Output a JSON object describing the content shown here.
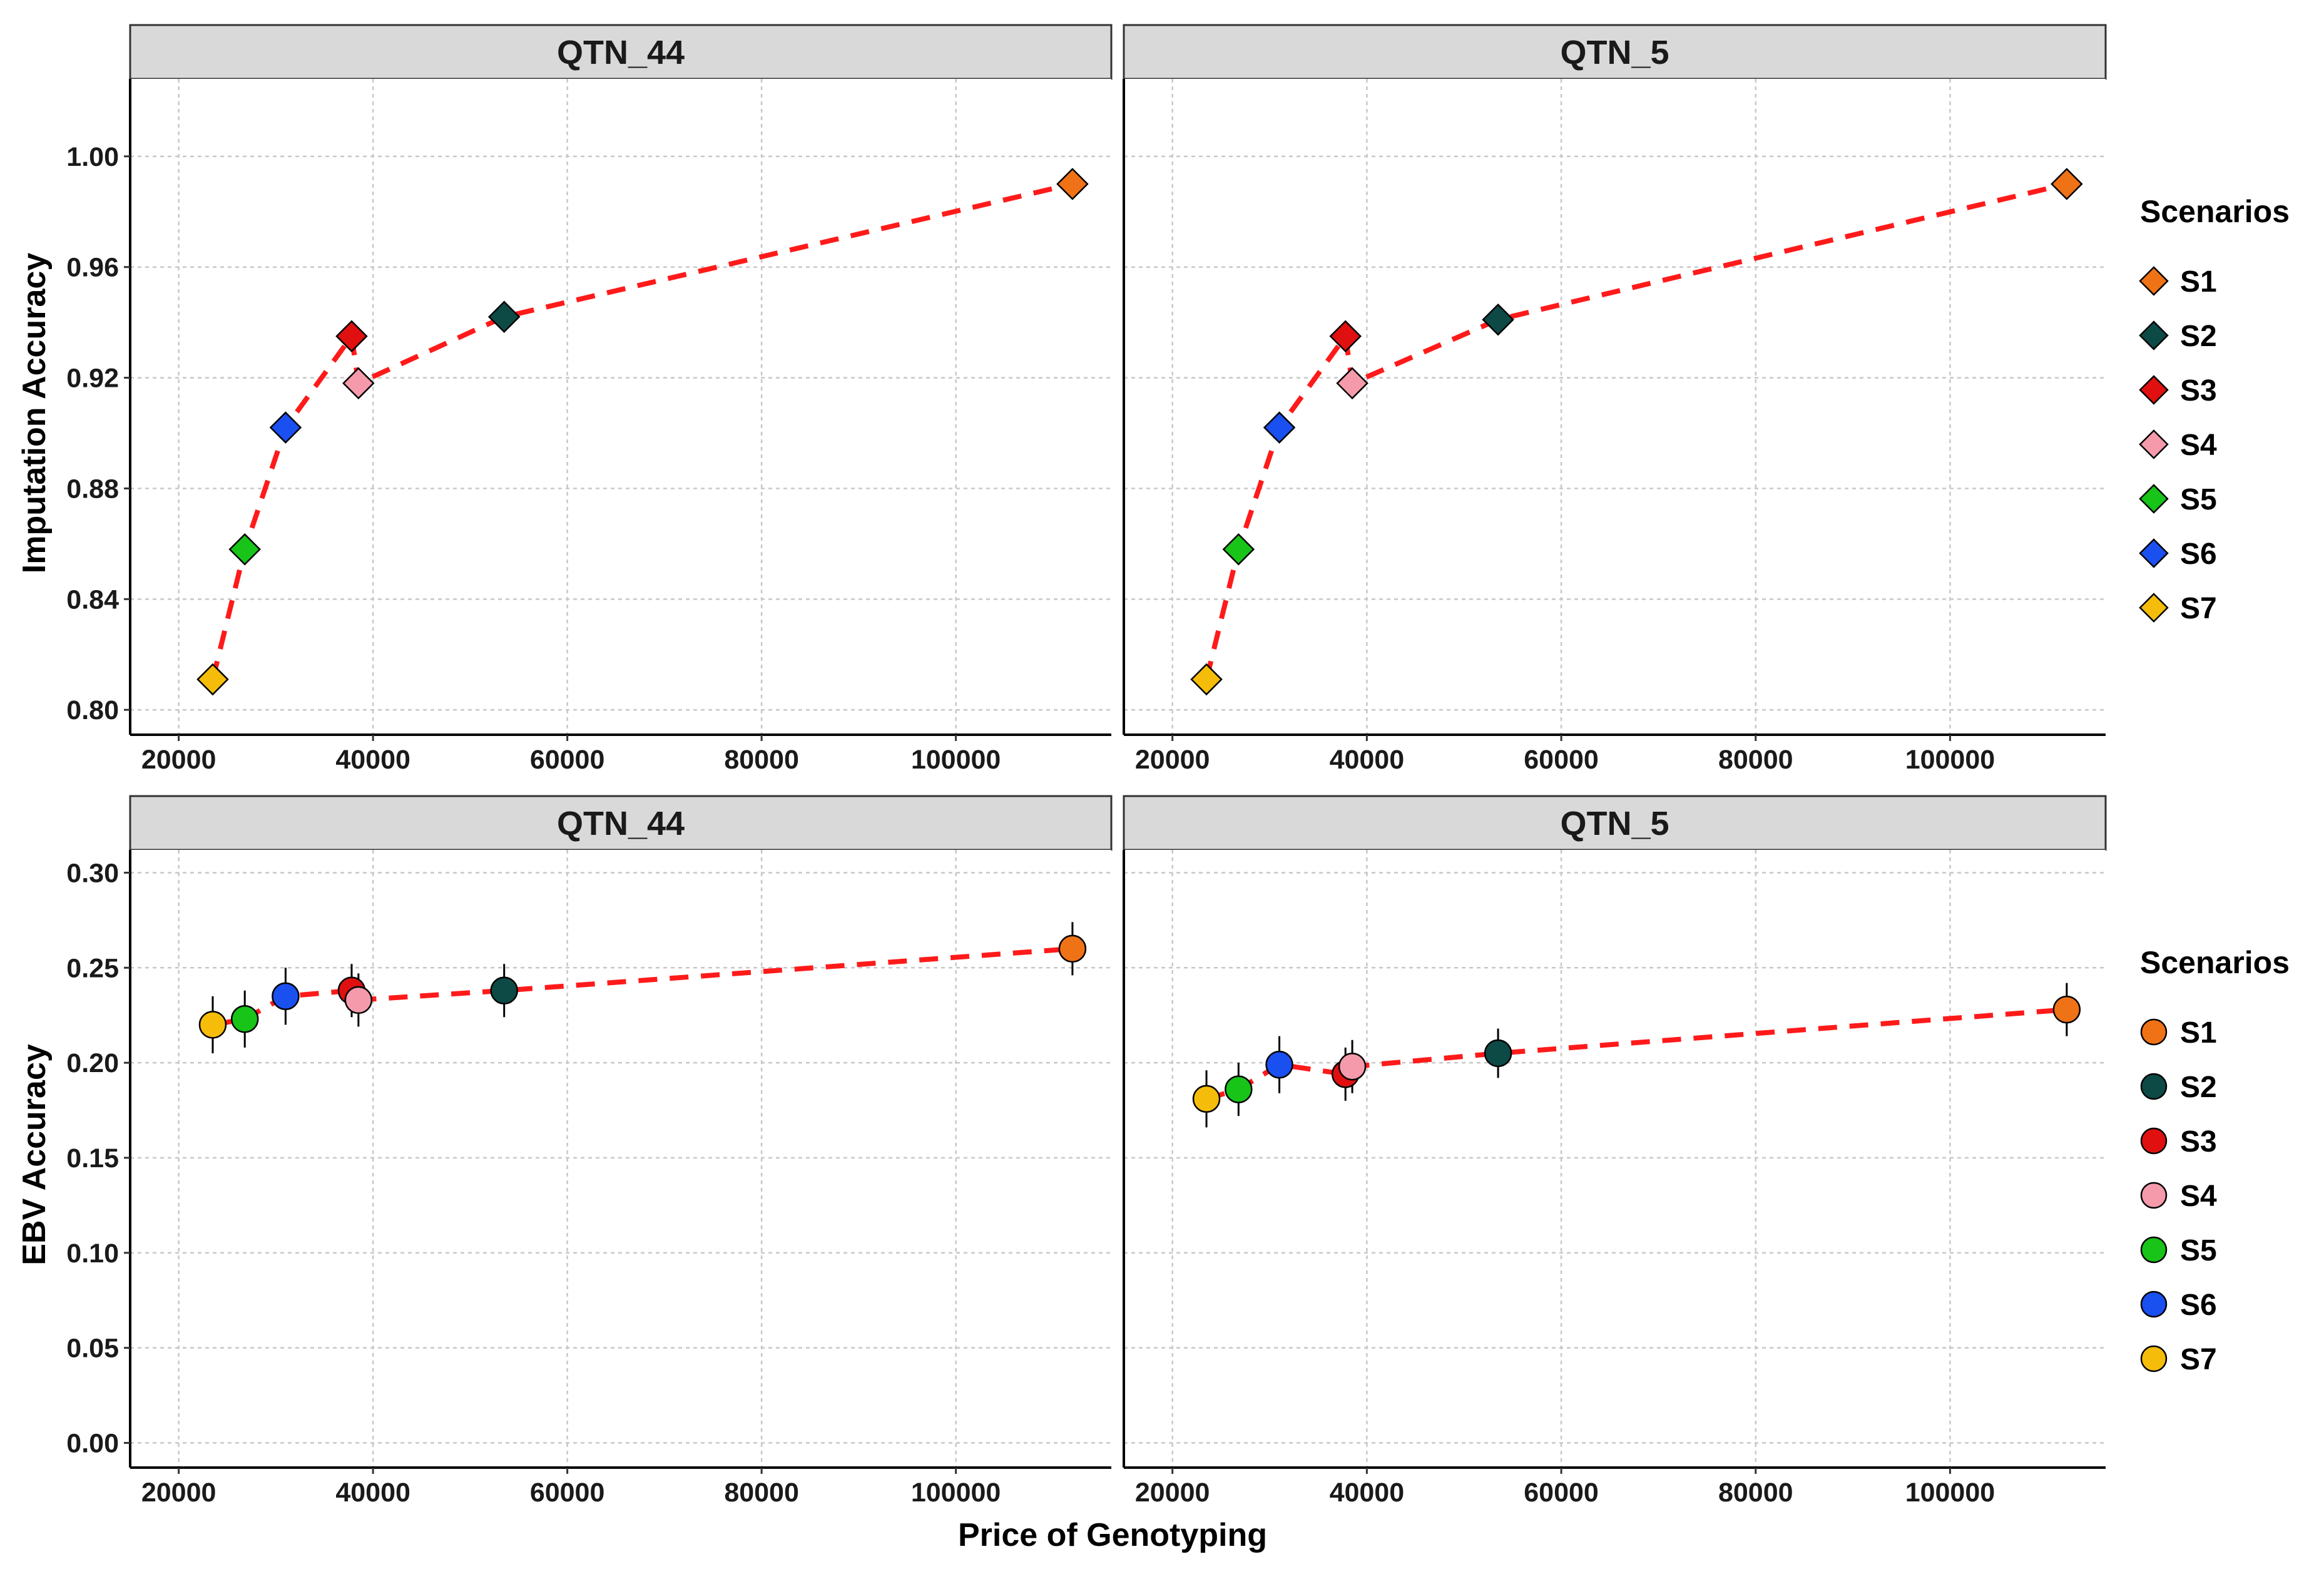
{
  "figure": {
    "x_axis_title": "Price of Genotyping",
    "y_axis_title_top": "Imputation Accuracy",
    "y_axis_title_bottom": "EBV Accuracy"
  },
  "colors": {
    "S1": "#f07216",
    "S2": "#0d4a46",
    "S3": "#e01010",
    "S4": "#f59aab",
    "S5": "#18c418",
    "S6": "#1a4ff0",
    "S7": "#f5bd0a",
    "trend_line": "#ff1a1a",
    "strip_background": "#d9d9d9",
    "grid": "#c8c8c8"
  },
  "legends": [
    {
      "title": "Scenarios",
      "shape": "diamond",
      "items": [
        {
          "key": "S1",
          "label": "S1"
        },
        {
          "key": "S2",
          "label": "S2"
        },
        {
          "key": "S3",
          "label": "S3"
        },
        {
          "key": "S4",
          "label": "S4"
        },
        {
          "key": "S5",
          "label": "S5"
        },
        {
          "key": "S6",
          "label": "S6"
        },
        {
          "key": "S7",
          "label": "S7"
        }
      ]
    },
    {
      "title": "Scenarios",
      "shape": "circle",
      "items": [
        {
          "key": "S1",
          "label": "S1"
        },
        {
          "key": "S2",
          "label": "S2"
        },
        {
          "key": "S3",
          "label": "S3"
        },
        {
          "key": "S4",
          "label": "S4"
        },
        {
          "key": "S5",
          "label": "S5"
        },
        {
          "key": "S6",
          "label": "S6"
        },
        {
          "key": "S7",
          "label": "S7"
        }
      ]
    }
  ],
  "chart_data": [
    {
      "type": "scatter",
      "panel": "top-left",
      "title": "QTN_44",
      "marker": "diamond",
      "xlabel": "",
      "ylabel": "Imputation Accuracy",
      "xlim": [
        15000,
        116000
      ],
      "ylim": [
        0.791,
        1.028
      ],
      "x_ticks": [
        20000,
        40000,
        60000,
        80000,
        100000
      ],
      "x_tick_labels": [
        "20000",
        "40000",
        "60000",
        "80000",
        "100000"
      ],
      "y_ticks": [
        0.8,
        0.84,
        0.88,
        0.92,
        0.96,
        1.0
      ],
      "y_tick_labels": [
        "0.80",
        "0.84",
        "0.88",
        "0.92",
        "0.96",
        "1.00"
      ],
      "grid": true,
      "trend_order": [
        "S7",
        "S5",
        "S6",
        "S3",
        "S4",
        "S2",
        "S1"
      ],
      "points": [
        {
          "scenario": "S1",
          "x": 112000,
          "y": 0.99
        },
        {
          "scenario": "S2",
          "x": 53500,
          "y": 0.942
        },
        {
          "scenario": "S3",
          "x": 37800,
          "y": 0.935
        },
        {
          "scenario": "S4",
          "x": 38500,
          "y": 0.918
        },
        {
          "scenario": "S5",
          "x": 26800,
          "y": 0.858
        },
        {
          "scenario": "S6",
          "x": 31000,
          "y": 0.902
        },
        {
          "scenario": "S7",
          "x": 23500,
          "y": 0.811
        }
      ]
    },
    {
      "type": "scatter",
      "panel": "top-right",
      "title": "QTN_5",
      "marker": "diamond",
      "xlabel": "",
      "ylabel": "",
      "xlim": [
        15000,
        116000
      ],
      "ylim": [
        0.791,
        1.028
      ],
      "x_ticks": [
        20000,
        40000,
        60000,
        80000,
        100000
      ],
      "x_tick_labels": [
        "20000",
        "40000",
        "60000",
        "80000",
        "100000"
      ],
      "grid": true,
      "trend_order": [
        "S7",
        "S5",
        "S6",
        "S3",
        "S4",
        "S2",
        "S1"
      ],
      "points": [
        {
          "scenario": "S1",
          "x": 112000,
          "y": 0.99
        },
        {
          "scenario": "S2",
          "x": 53500,
          "y": 0.941
        },
        {
          "scenario": "S3",
          "x": 37800,
          "y": 0.935
        },
        {
          "scenario": "S4",
          "x": 38500,
          "y": 0.918
        },
        {
          "scenario": "S5",
          "x": 26800,
          "y": 0.858
        },
        {
          "scenario": "S6",
          "x": 31000,
          "y": 0.902
        },
        {
          "scenario": "S7",
          "x": 23500,
          "y": 0.811
        }
      ]
    },
    {
      "type": "scatter",
      "panel": "bottom-left",
      "title": "QTN_44",
      "marker": "circle",
      "xlabel": "Price of Genotyping",
      "ylabel": "EBV Accuracy",
      "xlim": [
        15000,
        116000
      ],
      "ylim": [
        -0.013,
        0.312
      ],
      "x_ticks": [
        20000,
        40000,
        60000,
        80000,
        100000
      ],
      "x_tick_labels": [
        "20000",
        "40000",
        "60000",
        "80000",
        "100000"
      ],
      "y_ticks": [
        0.0,
        0.05,
        0.1,
        0.15,
        0.2,
        0.25,
        0.3
      ],
      "y_tick_labels": [
        "0.00",
        "0.05",
        "0.10",
        "0.15",
        "0.20",
        "0.25",
        "0.30"
      ],
      "grid": true,
      "trend_order": [
        "S7",
        "S5",
        "S6",
        "S3",
        "S4",
        "S2",
        "S1"
      ],
      "points": [
        {
          "scenario": "S1",
          "x": 112000,
          "y": 0.26,
          "err": 0.014
        },
        {
          "scenario": "S2",
          "x": 53500,
          "y": 0.238,
          "err": 0.014
        },
        {
          "scenario": "S3",
          "x": 37800,
          "y": 0.238,
          "err": 0.014
        },
        {
          "scenario": "S4",
          "x": 38500,
          "y": 0.233,
          "err": 0.014
        },
        {
          "scenario": "S5",
          "x": 26800,
          "y": 0.223,
          "err": 0.015
        },
        {
          "scenario": "S6",
          "x": 31000,
          "y": 0.235,
          "err": 0.015
        },
        {
          "scenario": "S7",
          "x": 23500,
          "y": 0.22,
          "err": 0.015
        }
      ]
    },
    {
      "type": "scatter",
      "panel": "bottom-right",
      "title": "QTN_5",
      "marker": "circle",
      "xlabel": "",
      "ylabel": "",
      "xlim": [
        15000,
        116000
      ],
      "ylim": [
        -0.013,
        0.312
      ],
      "x_ticks": [
        20000,
        40000,
        60000,
        80000,
        100000
      ],
      "x_tick_labels": [
        "20000",
        "40000",
        "60000",
        "80000",
        "100000"
      ],
      "grid": true,
      "trend_order": [
        "S7",
        "S5",
        "S6",
        "S3",
        "S4",
        "S2",
        "S1"
      ],
      "points": [
        {
          "scenario": "S1",
          "x": 112000,
          "y": 0.228,
          "err": 0.014
        },
        {
          "scenario": "S2",
          "x": 53500,
          "y": 0.205,
          "err": 0.013
        },
        {
          "scenario": "S3",
          "x": 37800,
          "y": 0.194,
          "err": 0.014
        },
        {
          "scenario": "S4",
          "x": 38500,
          "y": 0.198,
          "err": 0.014
        },
        {
          "scenario": "S5",
          "x": 26800,
          "y": 0.186,
          "err": 0.014
        },
        {
          "scenario": "S6",
          "x": 31000,
          "y": 0.199,
          "err": 0.015
        },
        {
          "scenario": "S7",
          "x": 23500,
          "y": 0.181,
          "err": 0.015
        }
      ]
    }
  ]
}
